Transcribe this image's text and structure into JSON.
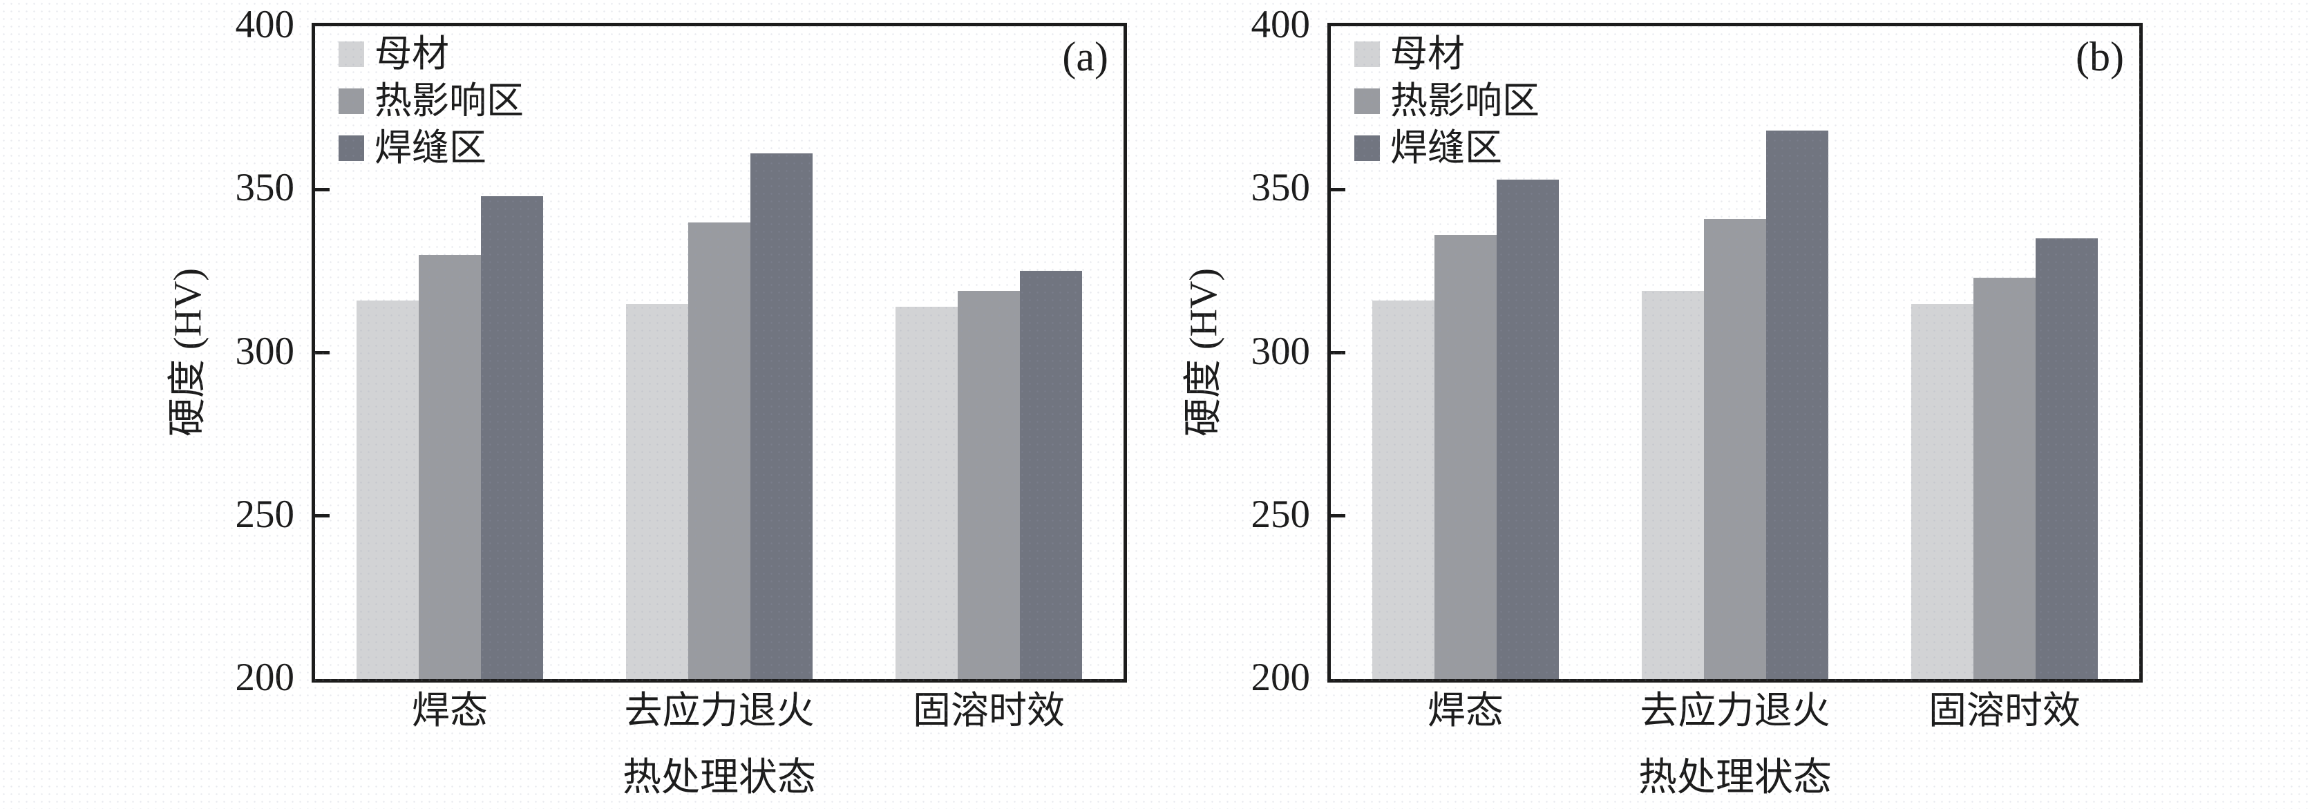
{
  "figure": {
    "background": "#ffffff",
    "axis_color": "#1c1c1c",
    "texture": "faint-dot-grid"
  },
  "chart_data": [
    {
      "type": "bar",
      "panel_label": "(a)",
      "title": "",
      "xlabel": "热处理状态",
      "ylabel": "硬度 (HV)",
      "ylim": [
        200,
        400
      ],
      "yticks": [
        200,
        250,
        300,
        350,
        400
      ],
      "grid": false,
      "legend_position": "upper-left-inside",
      "categories": [
        "焊态",
        "去应力退火",
        "固溶时效"
      ],
      "series": [
        {
          "name": "母材",
          "color": "#d2d3d5",
          "values": [
            316,
            315,
            314
          ]
        },
        {
          "name": "热影响区",
          "color": "#999ba0",
          "values": [
            330,
            340,
            319
          ]
        },
        {
          "name": "焊缝区",
          "color": "#717580",
          "values": [
            348,
            361,
            325
          ]
        }
      ]
    },
    {
      "type": "bar",
      "panel_label": "(b)",
      "title": "",
      "xlabel": "热处理状态",
      "ylabel": "硬度 (HV)",
      "ylim": [
        200,
        400
      ],
      "yticks": [
        200,
        250,
        300,
        350,
        400
      ],
      "grid": false,
      "legend_position": "upper-left-inside",
      "categories": [
        "焊态",
        "去应力退火",
        "固溶时效"
      ],
      "series": [
        {
          "name": "母材",
          "color": "#d2d3d5",
          "values": [
            316,
            319,
            315
          ]
        },
        {
          "name": "热影响区",
          "color": "#999ba0",
          "values": [
            336,
            341,
            323
          ]
        },
        {
          "name": "焊缝区",
          "color": "#717580",
          "values": [
            353,
            368,
            335
          ]
        }
      ]
    }
  ]
}
